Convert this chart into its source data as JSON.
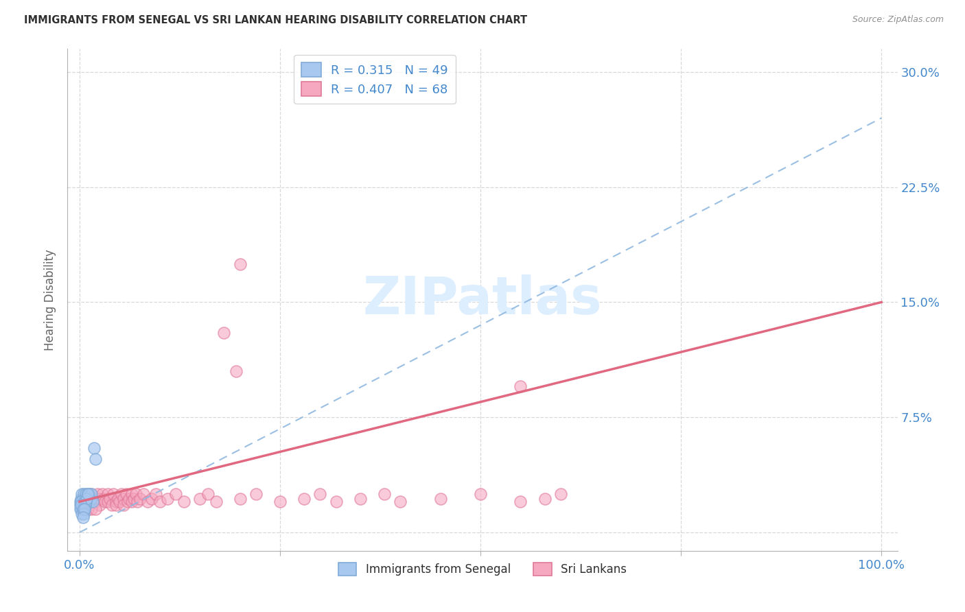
{
  "title": "IMMIGRANTS FROM SENEGAL VS SRI LANKAN HEARING DISABILITY CORRELATION CHART",
  "source": "Source: ZipAtlas.com",
  "ylabel_label": "Hearing Disability",
  "legend_label1": "Immigrants from Senegal",
  "legend_label2": "Sri Lankans",
  "R1": 0.315,
  "N1": 49,
  "R2": 0.407,
  "N2": 68,
  "color_blue_fill": "#a8c8f0",
  "color_blue_edge": "#80aad8",
  "color_pink_fill": "#f5a8c0",
  "color_pink_edge": "#e07898",
  "color_blue_trend": "#90b8e0",
  "color_pink_trend": "#e06880",
  "color_axis_text": "#4488cc",
  "color_title": "#303030",
  "color_source": "#909090",
  "color_grid": "#d8d8d8",
  "color_watermark": "#ddeeff",
  "color_bg": "#ffffff",
  "blue_trend_start_y": 0.0,
  "blue_trend_end_y": 0.27,
  "pink_trend_start_y": 0.02,
  "pink_trend_end_y": 0.15,
  "yticks": [
    0.0,
    0.075,
    0.15,
    0.225,
    0.3
  ],
  "ytick_labels": [
    "",
    "7.5%",
    "15.0%",
    "22.5%",
    "30.0%"
  ],
  "xticks": [
    0.0,
    0.25,
    0.5,
    0.75,
    1.0
  ],
  "xtick_labels": [
    "0.0%",
    "",
    "",
    "",
    "100.0%"
  ],
  "senegal_x": [
    0.001,
    0.002,
    0.002,
    0.003,
    0.003,
    0.003,
    0.004,
    0.004,
    0.004,
    0.005,
    0.005,
    0.005,
    0.005,
    0.006,
    0.006,
    0.006,
    0.007,
    0.007,
    0.008,
    0.008,
    0.009,
    0.009,
    0.01,
    0.01,
    0.011,
    0.012,
    0.013,
    0.014,
    0.015,
    0.016,
    0.001,
    0.002,
    0.003,
    0.004,
    0.005,
    0.006,
    0.007,
    0.008,
    0.009,
    0.01,
    0.001,
    0.002,
    0.003,
    0.004,
    0.005,
    0.006,
    0.018,
    0.02,
    0.004
  ],
  "senegal_y": [
    0.02,
    0.015,
    0.022,
    0.018,
    0.025,
    0.015,
    0.02,
    0.018,
    0.022,
    0.02,
    0.018,
    0.022,
    0.025,
    0.018,
    0.02,
    0.015,
    0.022,
    0.02,
    0.025,
    0.018,
    0.02,
    0.022,
    0.025,
    0.02,
    0.022,
    0.025,
    0.02,
    0.022,
    0.025,
    0.02,
    0.018,
    0.02,
    0.015,
    0.018,
    0.015,
    0.02,
    0.018,
    0.02,
    0.022,
    0.025,
    0.015,
    0.018,
    0.012,
    0.015,
    0.012,
    0.015,
    0.055,
    0.048,
    0.01
  ],
  "srilanka_x": [
    0.005,
    0.008,
    0.01,
    0.012,
    0.015,
    0.015,
    0.018,
    0.02,
    0.022,
    0.025,
    0.025,
    0.028,
    0.03,
    0.032,
    0.035,
    0.035,
    0.038,
    0.04,
    0.042,
    0.045,
    0.045,
    0.048,
    0.05,
    0.052,
    0.055,
    0.055,
    0.058,
    0.06,
    0.062,
    0.065,
    0.065,
    0.068,
    0.07,
    0.072,
    0.075,
    0.08,
    0.085,
    0.09,
    0.095,
    0.1,
    0.11,
    0.12,
    0.13,
    0.15,
    0.16,
    0.17,
    0.2,
    0.22,
    0.25,
    0.28,
    0.3,
    0.32,
    0.35,
    0.38,
    0.4,
    0.45,
    0.5,
    0.55,
    0.58,
    0.6,
    0.2,
    0.18,
    0.195,
    0.55,
    0.005,
    0.01,
    0.015,
    0.02
  ],
  "srilanka_y": [
    0.02,
    0.018,
    0.022,
    0.018,
    0.025,
    0.02,
    0.022,
    0.02,
    0.025,
    0.022,
    0.018,
    0.025,
    0.022,
    0.02,
    0.025,
    0.02,
    0.022,
    0.018,
    0.025,
    0.02,
    0.018,
    0.022,
    0.02,
    0.025,
    0.022,
    0.018,
    0.025,
    0.02,
    0.022,
    0.025,
    0.02,
    0.022,
    0.025,
    0.02,
    0.022,
    0.025,
    0.02,
    0.022,
    0.025,
    0.02,
    0.022,
    0.025,
    0.02,
    0.022,
    0.025,
    0.02,
    0.022,
    0.025,
    0.02,
    0.022,
    0.025,
    0.02,
    0.022,
    0.025,
    0.02,
    0.022,
    0.025,
    0.02,
    0.022,
    0.025,
    0.175,
    0.13,
    0.105,
    0.095,
    0.015,
    0.015,
    0.015,
    0.015
  ]
}
